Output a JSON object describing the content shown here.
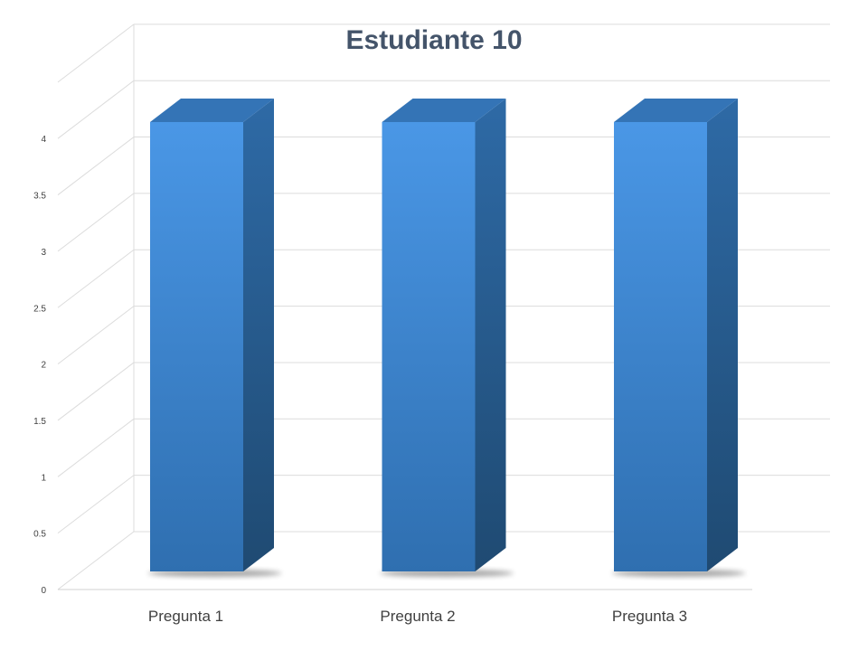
{
  "chart_data": {
    "type": "bar",
    "title": "Estudiante 10",
    "categories": [
      "Pregunta 1",
      "Pregunta 2",
      "Pregunta 3"
    ],
    "values": [
      4,
      4,
      4
    ],
    "xlabel": "",
    "ylabel": "",
    "ylim": [
      0,
      4.5
    ],
    "yticks": [
      "0",
      "0.5",
      "1",
      "1.5",
      "2",
      "2.5",
      "3",
      "3.5",
      "4"
    ],
    "grid": true,
    "legend": "none",
    "style": "3d-column",
    "colors": {
      "bar_front_top": "#4a97e6",
      "bar_front_bottom": "#2f6fb0",
      "bar_side_top": "#2e6aa6",
      "bar_side_bottom": "#1f4a72",
      "bar_top": "#3474b6",
      "title": "#44546a",
      "grid": "#dcdcdc"
    }
  }
}
